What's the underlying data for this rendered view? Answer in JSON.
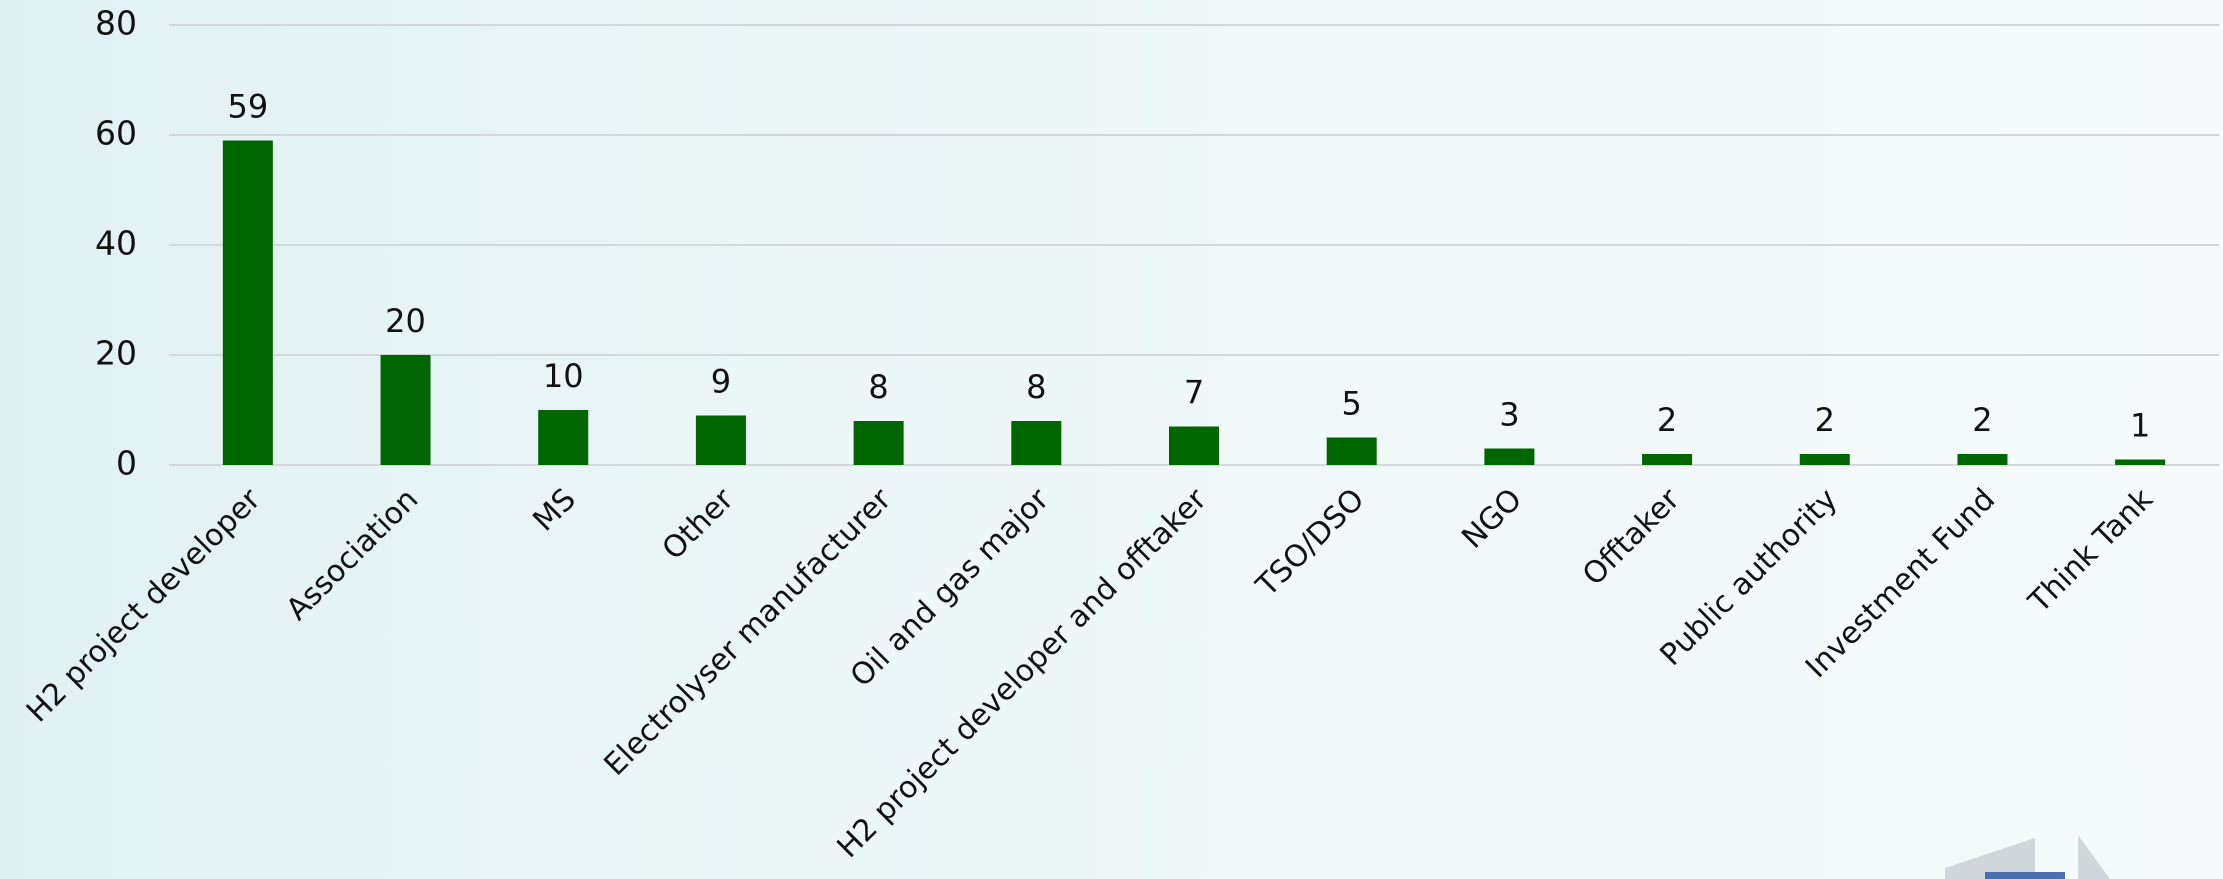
{
  "chart_data": {
    "type": "bar",
    "categories": [
      "H2 project developer",
      "Association",
      "MS",
      "Other",
      "Electrolyser manufacturer",
      "Oil and gas major",
      "H2 project developer and offtaker",
      "TSO/DSO",
      "NGO",
      "Offtaker",
      "Public authority",
      "Investment Fund",
      "Think Tank"
    ],
    "values": [
      59,
      20,
      10,
      9,
      8,
      8,
      7,
      5,
      3,
      2,
      2,
      2,
      1
    ],
    "color": "#006600",
    "ylim": [
      0,
      80
    ],
    "yticks": [
      0,
      20,
      40,
      60,
      80
    ],
    "grid": true
  }
}
